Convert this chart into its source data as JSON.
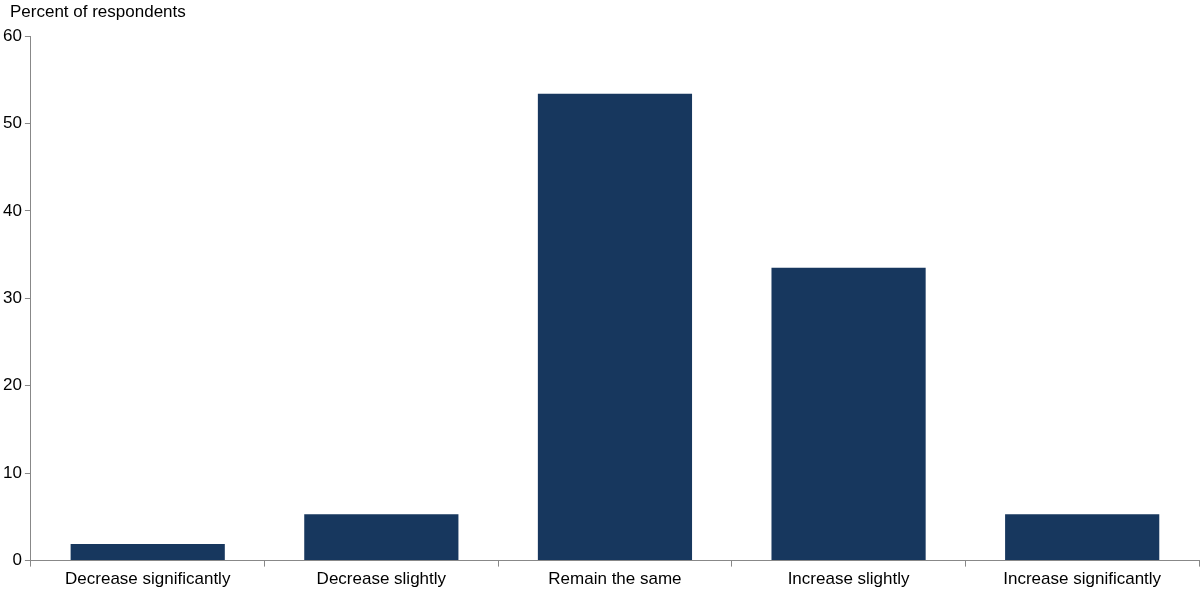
{
  "chart_data": {
    "type": "bar",
    "ylabel": "Percent of respondents",
    "categories": [
      "Decrease significantly",
      "Decrease slightly",
      "Remain the same",
      "Increase slightly",
      "Increase significantly"
    ],
    "values": [
      1.9,
      5.3,
      53.4,
      33.5,
      5.3
    ],
    "color": "#17375e",
    "ylim": [
      0,
      60
    ],
    "yticks": [
      0,
      10,
      20,
      30,
      40,
      50,
      60
    ],
    "grid": false,
    "legend": false
  }
}
